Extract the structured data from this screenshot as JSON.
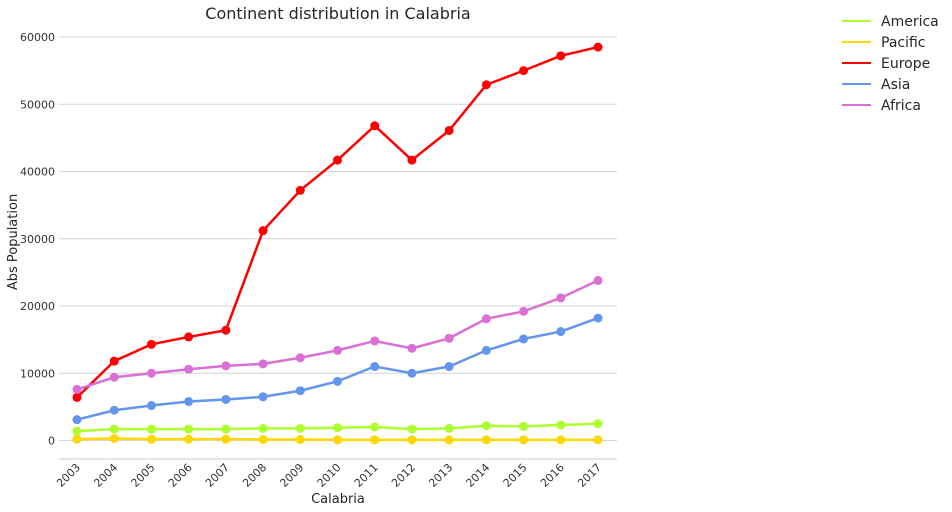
{
  "chart_data": {
    "type": "line",
    "title": "Continent distribution in Calabria",
    "xlabel": "Calabria",
    "ylabel": "Abs Population",
    "categories": [
      "2003",
      "2004",
      "2005",
      "2006",
      "2007",
      "2008",
      "2009",
      "2010",
      "2011",
      "2012",
      "2013",
      "2014",
      "2015",
      "2016",
      "2017"
    ],
    "ylim": [
      -3000,
      62000
    ],
    "yticks": [
      0,
      10000,
      20000,
      30000,
      40000,
      50000,
      60000
    ],
    "grid": "horizontal",
    "legend_position": "upper right outside",
    "series": [
      {
        "name": "America",
        "color": "#adff2f",
        "values": [
          1400,
          1700,
          1700,
          1700,
          1700,
          1800,
          1800,
          1900,
          2000,
          1700,
          1800,
          2200,
          2100,
          2300,
          2500
        ]
      },
      {
        "name": "Pacific",
        "color": "#ffd700",
        "values": [
          200,
          300,
          200,
          200,
          200,
          150,
          150,
          100,
          100,
          100,
          100,
          100,
          100,
          100,
          100
        ]
      },
      {
        "name": "Europe",
        "color": "#ff0000",
        "values": [
          6400,
          11800,
          14300,
          15400,
          16400,
          31200,
          37200,
          41700,
          46800,
          41700,
          46100,
          52900,
          55000,
          57200,
          58500
        ]
      },
      {
        "name": "Asia",
        "color": "#6495ed",
        "values": [
          3100,
          4500,
          5200,
          5800,
          6100,
          6500,
          7400,
          8800,
          11000,
          10000,
          11000,
          13400,
          15100,
          16200,
          18200
        ]
      },
      {
        "name": "Africa",
        "color": "#da70d6",
        "values": [
          7600,
          9400,
          10000,
          10600,
          11100,
          11400,
          12300,
          13400,
          14800,
          13700,
          15200,
          18100,
          19200,
          21200,
          23800
        ]
      }
    ]
  }
}
